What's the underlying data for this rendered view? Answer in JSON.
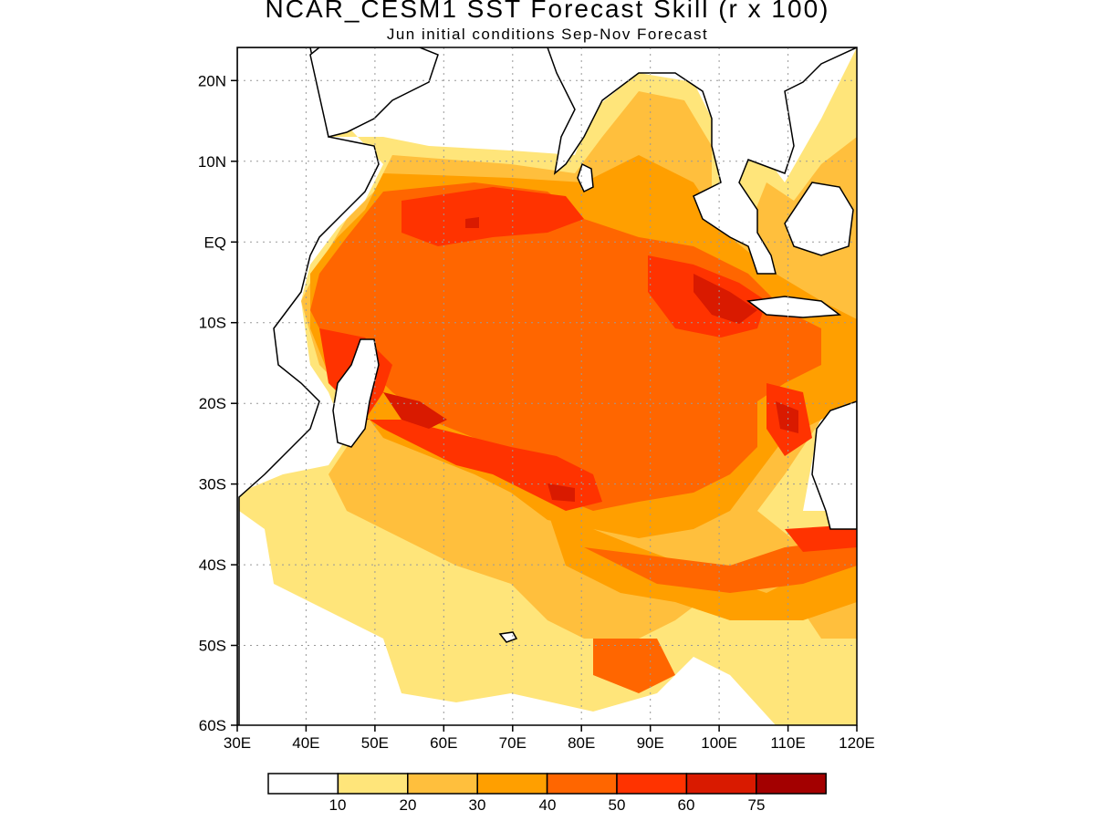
{
  "title": "NCAR_CESM1 SST Forecast Skill (r x 100)",
  "subtitle": "Jun initial conditions  Sep-Nov Forecast",
  "map": {
    "lon_range": [
      30,
      120
    ],
    "lat_range": [
      -60,
      24
    ],
    "lon_ticks": [
      "30E",
      "40E",
      "50E",
      "60E",
      "70E",
      "80E",
      "90E",
      "100E",
      "110E",
      "120E"
    ],
    "lat_ticks": [
      "20N",
      "10N",
      "EQ",
      "10S",
      "20S",
      "30S",
      "40S",
      "50S",
      "60S"
    ],
    "gridlines": "dotted"
  },
  "colorbar": {
    "levels": [
      "10",
      "20",
      "30",
      "40",
      "50",
      "60",
      "75"
    ],
    "colors": [
      "#ffffff",
      "#ffe57a",
      "#ffbf3d",
      "#ff9f00",
      "#ff6600",
      "#ff3300",
      "#d91a00",
      "#a30000"
    ]
  }
}
